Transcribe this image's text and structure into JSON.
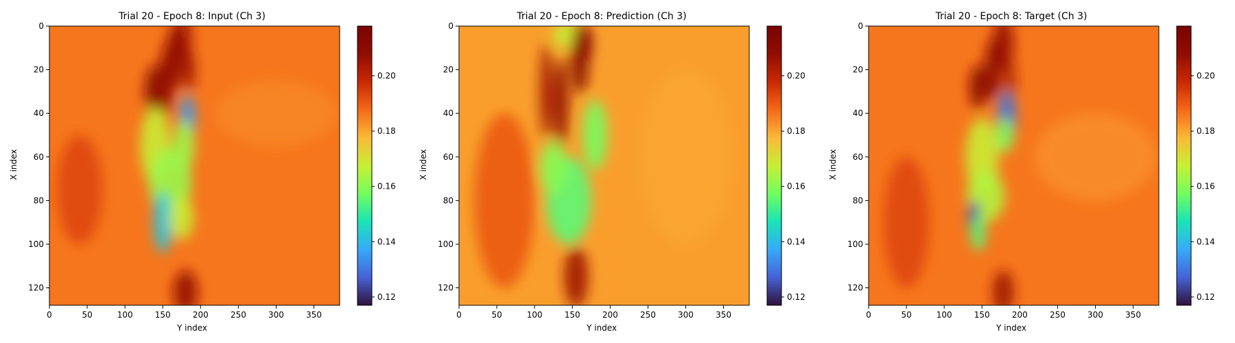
{
  "chart_data": [
    {
      "type": "heatmap",
      "title": "Trial 20 - Epoch 8: Input (Ch 3)",
      "xlabel": "Y index",
      "ylabel": "X index",
      "xlim": [
        0,
        384
      ],
      "ylim": [
        128,
        0
      ],
      "xticks": [
        0,
        50,
        100,
        150,
        200,
        250,
        300,
        350
      ],
      "yticks": [
        0,
        20,
        40,
        60,
        80,
        100,
        120
      ],
      "colorbar": {
        "colormap": "turbo",
        "range": [
          0.117,
          0.218
        ],
        "ticks": [
          "0.12",
          "0.14",
          "0.16",
          "0.18",
          "0.20"
        ]
      },
      "background_value": 0.186,
      "features": [
        {
          "x": 175,
          "y": 5,
          "rx": 14,
          "ry": 10,
          "value": 0.205
        },
        {
          "x": 165,
          "y": 15,
          "rx": 12,
          "ry": 14,
          "value": 0.208
        },
        {
          "x": 140,
          "y": 30,
          "rx": 14,
          "ry": 12,
          "value": 0.212
        },
        {
          "x": 155,
          "y": 25,
          "rx": 10,
          "ry": 16,
          "value": 0.207
        },
        {
          "x": 185,
          "y": 20,
          "rx": 8,
          "ry": 10,
          "value": 0.205
        },
        {
          "x": 183,
          "y": 42,
          "rx": 10,
          "ry": 10,
          "value": 0.135
        },
        {
          "x": 178,
          "y": 55,
          "rx": 14,
          "ry": 12,
          "value": 0.163
        },
        {
          "x": 140,
          "y": 55,
          "rx": 20,
          "ry": 18,
          "value": 0.168
        },
        {
          "x": 160,
          "y": 72,
          "rx": 28,
          "ry": 16,
          "value": 0.162
        },
        {
          "x": 150,
          "y": 90,
          "rx": 12,
          "ry": 14,
          "value": 0.142
        },
        {
          "x": 175,
          "y": 88,
          "rx": 16,
          "ry": 10,
          "value": 0.168
        },
        {
          "x": 180,
          "y": 122,
          "rx": 16,
          "ry": 10,
          "value": 0.207
        },
        {
          "x": 40,
          "y": 75,
          "rx": 30,
          "ry": 25,
          "value": 0.193
        },
        {
          "x": 300,
          "y": 40,
          "rx": 80,
          "ry": 15,
          "value": 0.184
        }
      ]
    },
    {
      "type": "heatmap",
      "title": "Trial 20 - Epoch 8: Prediction (Ch 3)",
      "xlabel": "Y index",
      "ylabel": "X index",
      "xlim": [
        0,
        384
      ],
      "ylim": [
        128,
        0
      ],
      "xticks": [
        0,
        50,
        100,
        150,
        200,
        250,
        300,
        350
      ],
      "yticks": [
        0,
        20,
        40,
        60,
        80,
        100,
        120
      ],
      "colorbar": {
        "colormap": "turbo",
        "range": [
          0.117,
          0.218
        ],
        "ticks": [
          "0.12",
          "0.14",
          "0.16",
          "0.18",
          "0.20"
        ]
      },
      "background_value": 0.181,
      "features": [
        {
          "x": 140,
          "y": 4,
          "rx": 16,
          "ry": 6,
          "value": 0.168
        },
        {
          "x": 160,
          "y": 15,
          "rx": 12,
          "ry": 16,
          "value": 0.212
        },
        {
          "x": 170,
          "y": 8,
          "rx": 6,
          "ry": 8,
          "value": 0.215
        },
        {
          "x": 115,
          "y": 30,
          "rx": 8,
          "ry": 22,
          "value": 0.205
        },
        {
          "x": 135,
          "y": 35,
          "rx": 10,
          "ry": 20,
          "value": 0.208
        },
        {
          "x": 180,
          "y": 50,
          "rx": 16,
          "ry": 16,
          "value": 0.158
        },
        {
          "x": 145,
          "y": 80,
          "rx": 30,
          "ry": 20,
          "value": 0.155
        },
        {
          "x": 125,
          "y": 65,
          "rx": 18,
          "ry": 12,
          "value": 0.16
        },
        {
          "x": 155,
          "y": 115,
          "rx": 16,
          "ry": 14,
          "value": 0.205
        },
        {
          "x": 60,
          "y": 80,
          "rx": 40,
          "ry": 40,
          "value": 0.19
        },
        {
          "x": 300,
          "y": 60,
          "rx": 60,
          "ry": 40,
          "value": 0.18
        }
      ]
    },
    {
      "type": "heatmap",
      "title": "Trial 20 - Epoch 8: Target (Ch 3)",
      "xlabel": "Y index",
      "ylabel": "X index",
      "xlim": [
        0,
        384
      ],
      "ylim": [
        128,
        0
      ],
      "xticks": [
        0,
        50,
        100,
        150,
        200,
        250,
        300,
        350
      ],
      "yticks": [
        0,
        20,
        40,
        60,
        80,
        100,
        120
      ],
      "colorbar": {
        "colormap": "turbo",
        "range": [
          0.117,
          0.218
        ],
        "ticks": [
          "0.12",
          "0.14",
          "0.16",
          "0.18",
          "0.20"
        ]
      },
      "background_value": 0.186,
      "features": [
        {
          "x": 178,
          "y": 8,
          "rx": 14,
          "ry": 12,
          "value": 0.207
        },
        {
          "x": 165,
          "y": 20,
          "rx": 12,
          "ry": 14,
          "value": 0.208
        },
        {
          "x": 145,
          "y": 28,
          "rx": 12,
          "ry": 10,
          "value": 0.21
        },
        {
          "x": 188,
          "y": 25,
          "rx": 6,
          "ry": 10,
          "value": 0.205
        },
        {
          "x": 183,
          "y": 42,
          "rx": 12,
          "ry": 12,
          "value": 0.13
        },
        {
          "x": 180,
          "y": 50,
          "rx": 12,
          "ry": 8,
          "value": 0.16
        },
        {
          "x": 150,
          "y": 60,
          "rx": 22,
          "ry": 18,
          "value": 0.168
        },
        {
          "x": 155,
          "y": 78,
          "rx": 25,
          "ry": 12,
          "value": 0.165
        },
        {
          "x": 140,
          "y": 88,
          "rx": 8,
          "ry": 8,
          "value": 0.125
        },
        {
          "x": 145,
          "y": 95,
          "rx": 10,
          "ry": 8,
          "value": 0.155
        },
        {
          "x": 178,
          "y": 122,
          "rx": 14,
          "ry": 10,
          "value": 0.205
        },
        {
          "x": 50,
          "y": 90,
          "rx": 30,
          "ry": 30,
          "value": 0.193
        },
        {
          "x": 300,
          "y": 60,
          "rx": 80,
          "ry": 20,
          "value": 0.183
        }
      ]
    }
  ]
}
